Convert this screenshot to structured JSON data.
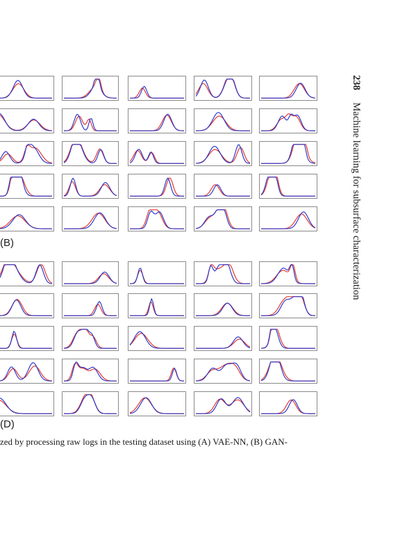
{
  "running_head": {
    "page_number": "238",
    "book_title": "Machine learning for subsurface characterization"
  },
  "figure": {
    "panel_labels": [
      "(B)",
      "(D)"
    ],
    "caption": "zed by processing raw logs in the testing dataset using (A) VAE-NN, (B) GAN-",
    "colors": {
      "series_a": "#2b36c9",
      "series_b": "#e0362f",
      "frame": "#8a8a8a"
    }
  }
}
